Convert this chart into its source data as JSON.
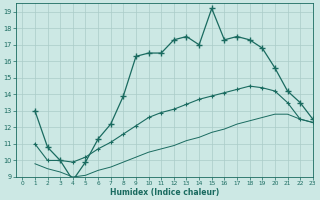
{
  "xlabel": "Humidex (Indice chaleur)",
  "xlim": [
    -0.5,
    23
  ],
  "ylim": [
    9,
    19.5
  ],
  "xticks": [
    0,
    1,
    2,
    3,
    4,
    5,
    6,
    7,
    8,
    9,
    10,
    11,
    12,
    13,
    14,
    15,
    16,
    17,
    18,
    19,
    20,
    21,
    22,
    23
  ],
  "yticks": [
    9,
    10,
    11,
    12,
    13,
    14,
    15,
    16,
    17,
    18,
    19
  ],
  "bg_color": "#cce8e4",
  "grid_color": "#aaccc8",
  "line_color": "#1a6b60",
  "line1_x": [
    1,
    2,
    3,
    4,
    5,
    6,
    7,
    8,
    9,
    10,
    11,
    12,
    13,
    14,
    15,
    16,
    17,
    18,
    19,
    20,
    21,
    22,
    23
  ],
  "line1_y": [
    13.0,
    10.8,
    10.0,
    8.8,
    9.9,
    11.3,
    12.2,
    13.9,
    16.3,
    16.5,
    16.5,
    17.3,
    17.5,
    17.0,
    19.2,
    17.3,
    17.5,
    17.3,
    16.8,
    15.6,
    14.2,
    13.5,
    12.5
  ],
  "line2_x": [
    1,
    2,
    3,
    4,
    5,
    6,
    7,
    8,
    9,
    10,
    11,
    12,
    13,
    14,
    15,
    16,
    17,
    18,
    19,
    20,
    21,
    22,
    23
  ],
  "line2_y": [
    11.0,
    10.0,
    10.0,
    9.9,
    10.2,
    10.7,
    11.1,
    11.6,
    12.1,
    12.6,
    12.9,
    13.1,
    13.4,
    13.7,
    13.9,
    14.1,
    14.3,
    14.5,
    14.4,
    14.2,
    13.5,
    12.5,
    12.3
  ],
  "line3_x": [
    1,
    2,
    3,
    4,
    5,
    6,
    7,
    8,
    9,
    10,
    11,
    12,
    13,
    14,
    15,
    16,
    17,
    18,
    19,
    20,
    21,
    22,
    23
  ],
  "line3_y": [
    9.8,
    9.5,
    9.3,
    9.0,
    9.1,
    9.4,
    9.6,
    9.9,
    10.2,
    10.5,
    10.7,
    10.9,
    11.2,
    11.4,
    11.7,
    11.9,
    12.2,
    12.4,
    12.6,
    12.8,
    12.8,
    12.5,
    12.3
  ]
}
